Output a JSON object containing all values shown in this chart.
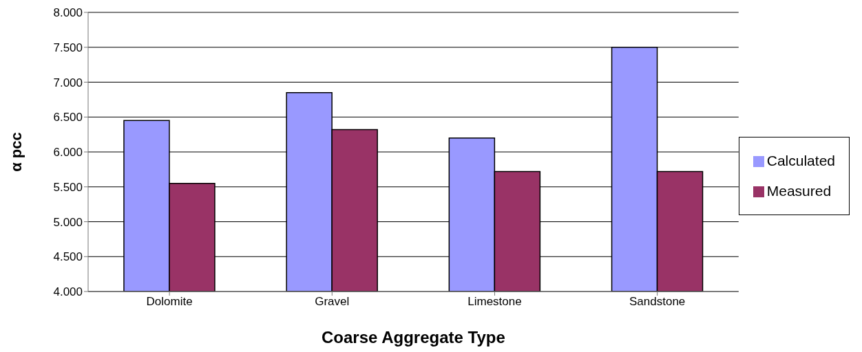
{
  "chart_data": {
    "type": "bar",
    "xlabel": "Coarse Aggregate Type",
    "ylabel": "α pcc",
    "categories": [
      "Dolomite",
      "Gravel",
      "Limestone",
      "Sandstone"
    ],
    "series": [
      {
        "name": "Calculated",
        "color": "#9999ff",
        "values": [
          6.45,
          6.85,
          6.2,
          7.5
        ]
      },
      {
        "name": "Measured",
        "color": "#993366",
        "values": [
          5.55,
          6.32,
          5.72,
          5.72
        ]
      }
    ],
    "ylim": [
      4,
      8
    ],
    "yticks": [
      {
        "value": 4,
        "label": "4.000"
      },
      {
        "value": 4.5,
        "label": "4.500"
      },
      {
        "value": 5,
        "label": "5.000"
      },
      {
        "value": 5.5,
        "label": "5.500"
      },
      {
        "value": 6,
        "label": "6.000"
      },
      {
        "value": 6.5,
        "label": "6.500"
      },
      {
        "value": 7,
        "label": "7.000"
      },
      {
        "value": 7.5,
        "label": "7.500"
      },
      {
        "value": 8,
        "label": "8.000"
      }
    ],
    "grid": "y",
    "legend": "right"
  }
}
